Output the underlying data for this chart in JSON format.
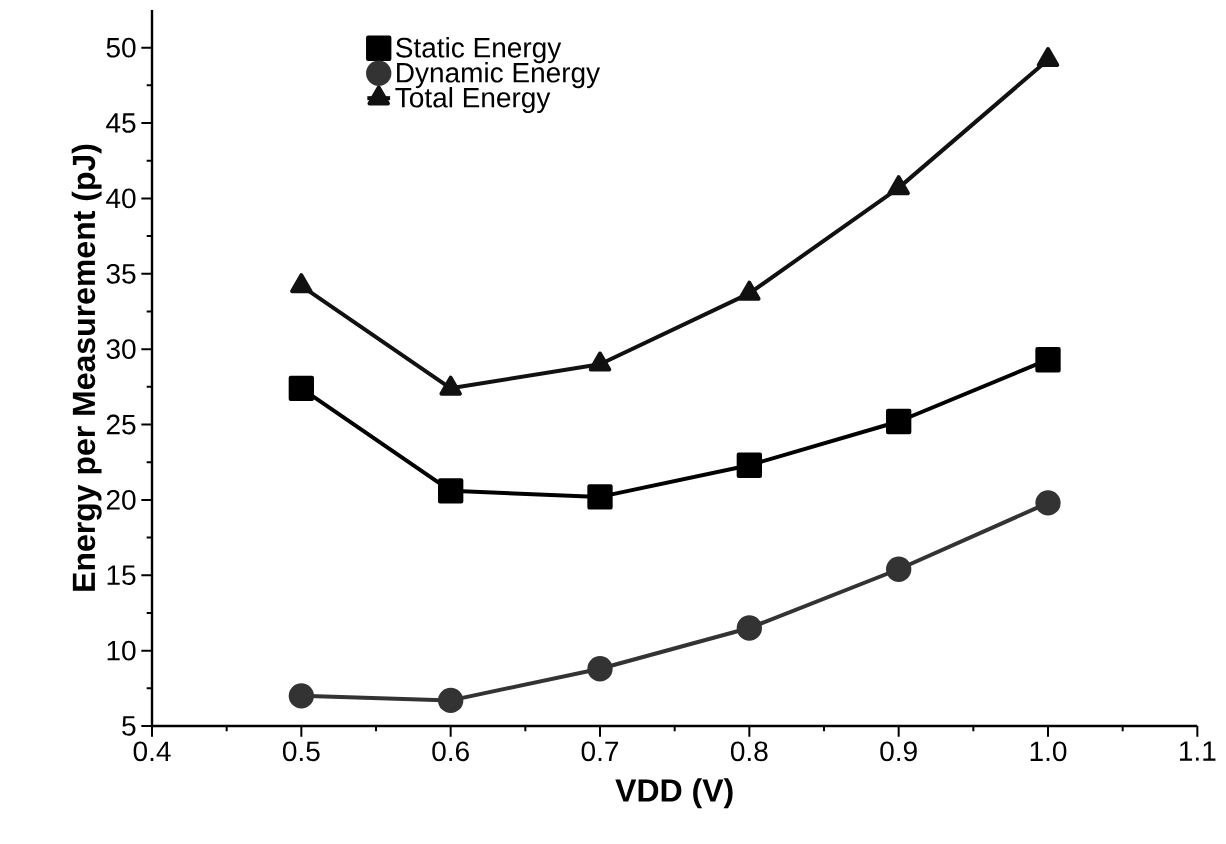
{
  "chart_data": {
    "type": "line",
    "xlabel": "VDD (V)",
    "ylabel": "Energy per Measurement (pJ)",
    "x": [
      0.5,
      0.6,
      0.7,
      0.8,
      0.9,
      1.0
    ],
    "series": [
      {
        "name": "Static Energy",
        "color": "#000000",
        "marker": "square",
        "values": [
          27.4,
          20.6,
          20.2,
          22.3,
          25.2,
          29.3
        ]
      },
      {
        "name": "Dynamic Energy",
        "color": "#333333",
        "marker": "circle",
        "values": [
          7.0,
          6.7,
          8.8,
          11.5,
          15.4,
          19.8
        ]
      },
      {
        "name": "Total Energy",
        "color": "#111111",
        "marker": "triangle",
        "values": [
          34.2,
          27.4,
          29.0,
          33.7,
          40.7,
          49.2
        ]
      }
    ],
    "xlim": [
      0.4,
      1.1
    ],
    "ylim": [
      5,
      52.5
    ],
    "xticks": [
      {
        "value": 0.4,
        "label": "0.4"
      },
      {
        "value": 0.5,
        "label": "0.5"
      },
      {
        "value": 0.6,
        "label": "0.6"
      },
      {
        "value": 0.7,
        "label": "0.7"
      },
      {
        "value": 0.8,
        "label": "0.8"
      },
      {
        "value": 0.9,
        "label": "0.9"
      },
      {
        "value": 1.0,
        "label": "1.0"
      },
      {
        "value": 1.1,
        "label": "1.1"
      }
    ],
    "yticks": [
      5,
      10,
      15,
      20,
      25,
      30,
      35,
      40,
      45,
      50
    ],
    "grid": false,
    "legend": "top left",
    "line_style": "solid"
  }
}
